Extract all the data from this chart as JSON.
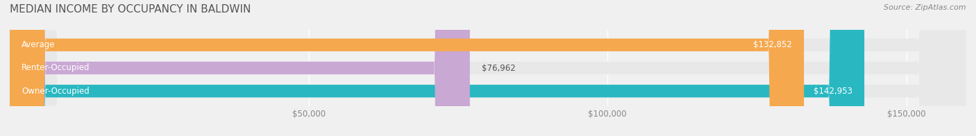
{
  "title": "MEDIAN INCOME BY OCCUPANCY IN BALDWIN",
  "source": "Source: ZipAtlas.com",
  "categories": [
    "Owner-Occupied",
    "Renter-Occupied",
    "Average"
  ],
  "values": [
    142953,
    76962,
    132852
  ],
  "labels": [
    "$142,953",
    "$76,962",
    "$132,852"
  ],
  "bar_colors": [
    "#29b8c2",
    "#c9a8d4",
    "#f5a84e"
  ],
  "bar_edge_colors": [
    "#29b8c2",
    "#c9a8d4",
    "#f5a84e"
  ],
  "xlim": [
    0,
    160000
  ],
  "xticks": [
    0,
    50000,
    100000,
    150000
  ],
  "xticklabels": [
    "",
    "$50,000",
    "$100,000",
    "$150,000"
  ],
  "title_fontsize": 11,
  "label_fontsize": 8.5,
  "tick_fontsize": 8.5,
  "source_fontsize": 8,
  "bar_height": 0.55,
  "background_color": "#f0f0f0",
  "bar_background_color": "#e8e8e8"
}
